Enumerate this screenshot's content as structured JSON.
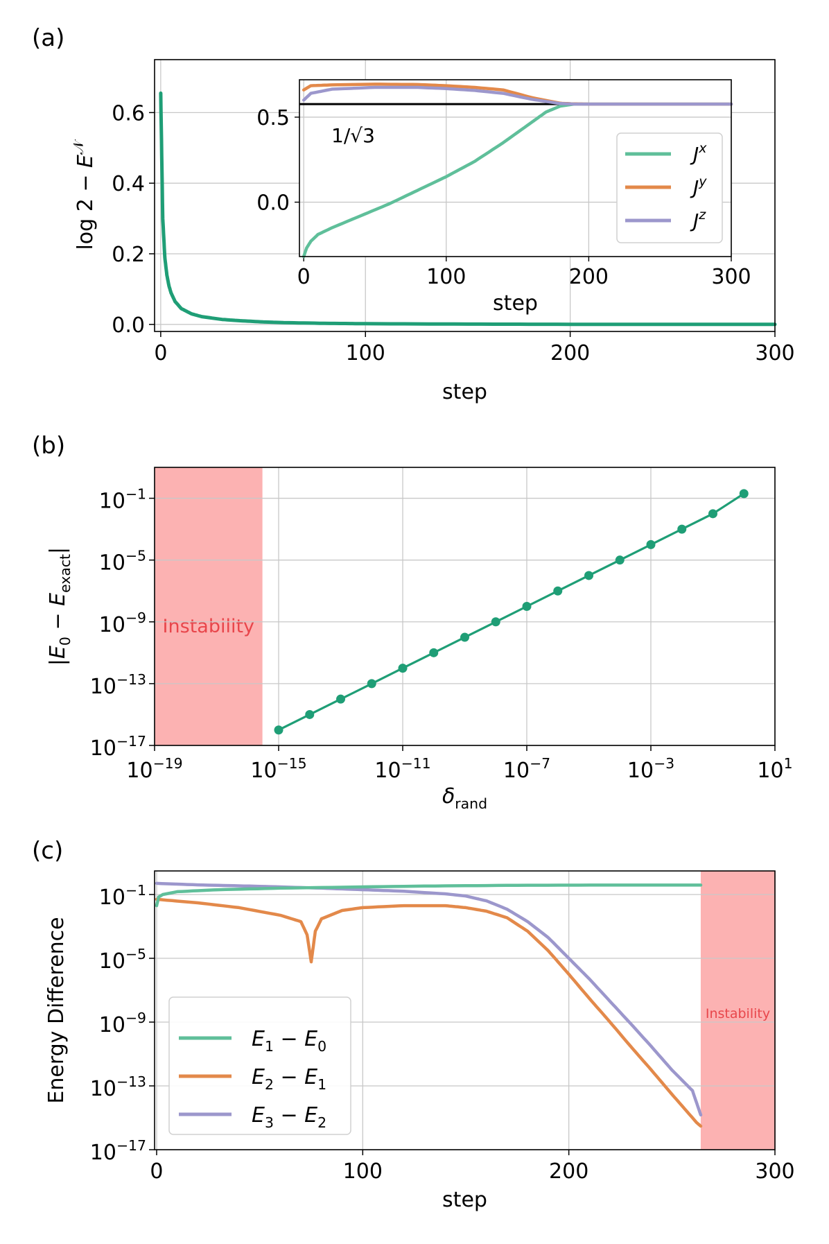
{
  "colors": {
    "green_main": "#1f9e76",
    "green_light": "#5fbf9a",
    "orange": "#e3894a",
    "purple": "#9c97cc",
    "instability_fill": "#fcb2b2",
    "instability_text": "#e8464b",
    "grid": "#c8c8c8"
  },
  "chart_data": [
    {
      "type": "line",
      "panel_label": "(a)",
      "xlabel": "step",
      "ylabel": "log 2 − E^𝒩",
      "xlim": [
        -3,
        300
      ],
      "ylim": [
        -0.02,
        0.75
      ],
      "xticks": [
        0,
        100,
        200,
        300
      ],
      "xtick_labels": [
        "0",
        "100",
        "200",
        "300"
      ],
      "yticks": [
        0.0,
        0.2,
        0.4,
        0.6
      ],
      "ytick_labels": [
        "0.0",
        "0.2",
        "0.4",
        "0.6"
      ],
      "grid": true,
      "series": [
        {
          "color": "#1f9e76",
          "x": [
            0,
            1,
            2,
            3,
            4,
            5,
            7,
            10,
            15,
            20,
            30,
            40,
            50,
            60,
            80,
            100,
            150,
            200,
            250,
            300
          ],
          "y": [
            0.655,
            0.3,
            0.19,
            0.14,
            0.11,
            0.09,
            0.065,
            0.045,
            0.03,
            0.022,
            0.014,
            0.01,
            0.007,
            0.005,
            0.003,
            0.002,
            0.0008,
            0.0003,
            0.0001,
            0.0
          ]
        }
      ],
      "inset": {
        "type": "line",
        "xlabel": "step",
        "xlim": [
          -3,
          300
        ],
        "ylim": [
          -0.32,
          0.72
        ],
        "xticks": [
          0,
          100,
          200,
          300
        ],
        "xtick_labels": [
          "0",
          "100",
          "200",
          "300"
        ],
        "yticks": [
          0.0,
          0.5
        ],
        "ytick_labels": [
          "0.0",
          "0.5"
        ],
        "grid": true,
        "reference_line": {
          "y": 0.577,
          "label": "1/√3"
        },
        "legend_position": "right",
        "series": [
          {
            "name": "J^x",
            "color": "#5fbf9a",
            "x": [
              0,
              2,
              5,
              10,
              20,
              40,
              60,
              80,
              100,
              120,
              140,
              160,
              170,
              180,
              190,
              200,
              250,
              300
            ],
            "y": [
              -0.32,
              -0.27,
              -0.23,
              -0.19,
              -0.15,
              -0.08,
              -0.01,
              0.07,
              0.15,
              0.24,
              0.35,
              0.47,
              0.53,
              0.565,
              0.577,
              0.577,
              0.577,
              0.577
            ]
          },
          {
            "name": "J^y",
            "color": "#e3894a",
            "x": [
              0,
              5,
              20,
              50,
              80,
              100,
              120,
              140,
              160,
              180,
              190,
              200,
              250,
              300
            ],
            "y": [
              0.66,
              0.685,
              0.69,
              0.694,
              0.692,
              0.685,
              0.675,
              0.66,
              0.615,
              0.582,
              0.578,
              0.577,
              0.577,
              0.577
            ]
          },
          {
            "name": "J^z",
            "color": "#9c97cc",
            "x": [
              0,
              5,
              20,
              50,
              80,
              100,
              120,
              140,
              160,
              180,
              190,
              200,
              250,
              300
            ],
            "y": [
              0.6,
              0.64,
              0.665,
              0.675,
              0.675,
              0.668,
              0.657,
              0.64,
              0.605,
              0.58,
              0.577,
              0.577,
              0.577,
              0.577
            ]
          }
        ]
      }
    },
    {
      "type": "line",
      "panel_label": "(b)",
      "xlabel": "δ_rand",
      "ylabel": "|E_0 − E_exact|",
      "x_scale": "log",
      "y_scale": "log",
      "xlim": [
        1e-19,
        10
      ],
      "ylim": [
        1e-17,
        10
      ],
      "xtick_labels": [
        "10^−19",
        "10^−15",
        "10^−11",
        "10^−7",
        "10^−3",
        "10^1"
      ],
      "ytick_labels": [
        "10^−1",
        "10^−5",
        "10^−9",
        "10^−13",
        "10^−17"
      ],
      "grid": true,
      "shaded_region": {
        "x_from": 1e-19,
        "x_to": 3e-16,
        "label": "Instability"
      },
      "series": [
        {
          "color": "#1f9e76",
          "x": [
            1e-15,
            1e-14,
            1e-13,
            1e-12,
            1e-11,
            1e-10,
            1e-09,
            1e-08,
            1e-07,
            1e-06,
            1e-05,
            0.0001,
            0.001,
            0.01,
            0.1,
            1
          ],
          "y": [
            1e-16,
            1e-15,
            1e-14,
            1e-13,
            1e-12,
            1e-11,
            1e-10,
            1e-09,
            1e-08,
            1e-07,
            1e-06,
            1e-05,
            0.0001,
            0.001,
            0.01,
            0.2
          ]
        }
      ]
    },
    {
      "type": "line",
      "panel_label": "(c)",
      "xlabel": "step",
      "ylabel": "Energy Difference",
      "y_scale": "log",
      "xlim": [
        -1,
        300
      ],
      "ylim": [
        1e-17,
        3
      ],
      "xticks": [
        0,
        100,
        200,
        300
      ],
      "xtick_labels": [
        "0",
        "100",
        "200",
        "300"
      ],
      "ytick_labels": [
        "10^−1",
        "10^−5",
        "10^−9",
        "10^−13",
        "10^−17"
      ],
      "grid": true,
      "legend_position": "bottom-left",
      "shaded_region": {
        "x_from": 264,
        "x_to": 300,
        "label": "Instability"
      },
      "series": [
        {
          "name": "E_1 − E_0",
          "color": "#5fbf9a",
          "x": [
            0,
            1,
            3,
            10,
            30,
            60,
            100,
            140,
            180,
            220,
            264
          ],
          "y": [
            0.02,
            0.07,
            0.1,
            0.15,
            0.2,
            0.25,
            0.3,
            0.35,
            0.38,
            0.39,
            0.39
          ]
        },
        {
          "name": "E_2 − E_1",
          "color": "#e3894a",
          "x": [
            0,
            20,
            40,
            60,
            70,
            73,
            75,
            77,
            80,
            90,
            100,
            120,
            140,
            150,
            160,
            170,
            180,
            190,
            200,
            210,
            220,
            230,
            240,
            250,
            260,
            262,
            264
          ],
          "y": [
            0.05,
            0.03,
            0.015,
            0.005,
            0.002,
            0.0003,
            6e-06,
            0.0005,
            0.003,
            0.01,
            0.015,
            0.02,
            0.02,
            0.015,
            0.009,
            0.0035,
            0.0005,
            3e-05,
            1e-06,
            3e-08,
            1e-09,
            3e-11,
            1e-12,
            3e-14,
            1e-15,
            5e-16,
            3e-16
          ]
        },
        {
          "name": "E_3 − E_2",
          "color": "#9c97cc",
          "x": [
            0,
            20,
            40,
            60,
            80,
            100,
            120,
            140,
            150,
            160,
            170,
            180,
            190,
            200,
            210,
            220,
            230,
            240,
            250,
            260,
            264
          ],
          "y": [
            0.5,
            0.4,
            0.35,
            0.3,
            0.25,
            0.2,
            0.16,
            0.11,
            0.08,
            0.04,
            0.012,
            0.002,
            0.0002,
            1e-05,
            5e-07,
            2e-08,
            8e-10,
            3e-11,
            1e-12,
            5e-14,
            1.5e-15
          ]
        }
      ]
    }
  ]
}
